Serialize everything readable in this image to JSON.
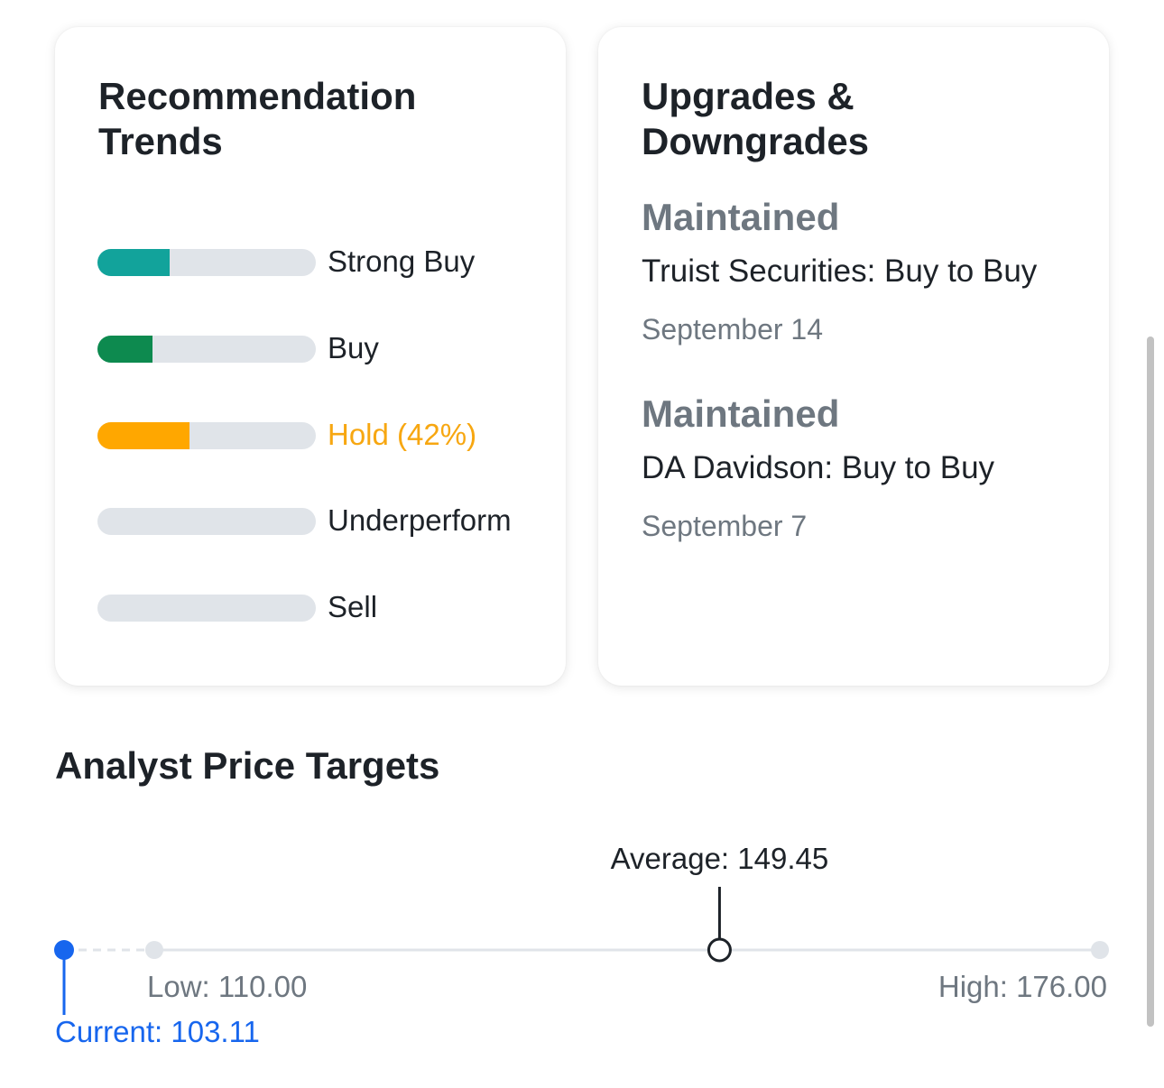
{
  "recommendation_trends": {
    "title": "Recommendation Trends",
    "rows": [
      {
        "label": "Strong Buy",
        "fraction": 0.33,
        "color": "#12a39b"
      },
      {
        "label": "Buy",
        "fraction": 0.25,
        "color": "#0d8a4f"
      },
      {
        "label": "Hold (42%)",
        "fraction": 0.42,
        "color": "#ffa700"
      },
      {
        "label": "Underperform",
        "fraction": 0,
        "color": "#e0e4e9"
      },
      {
        "label": "Sell",
        "fraction": 0,
        "color": "#e0e4e9"
      }
    ]
  },
  "upgrades_downgrades": {
    "title": "Upgrades & Downgrades",
    "items": [
      {
        "action": "Maintained",
        "detail": "Truist Securities: Buy to Buy",
        "date": "September 14"
      },
      {
        "action": "Maintained",
        "detail": "DA Davidson: Buy to Buy",
        "date": "September 7"
      }
    ]
  },
  "analyst_price_targets": {
    "title": "Analyst Price Targets",
    "current_label": "Current: 103.11",
    "low_label": "Low: 110.00",
    "average_label": "Average: 149.45",
    "high_label": "High: 176.00",
    "current": 103.11,
    "low": 110.0,
    "average": 149.45,
    "high": 176.0,
    "colors": {
      "current": "#1766ee",
      "track": "#e0e4e9",
      "muted": "#6e7780"
    }
  }
}
